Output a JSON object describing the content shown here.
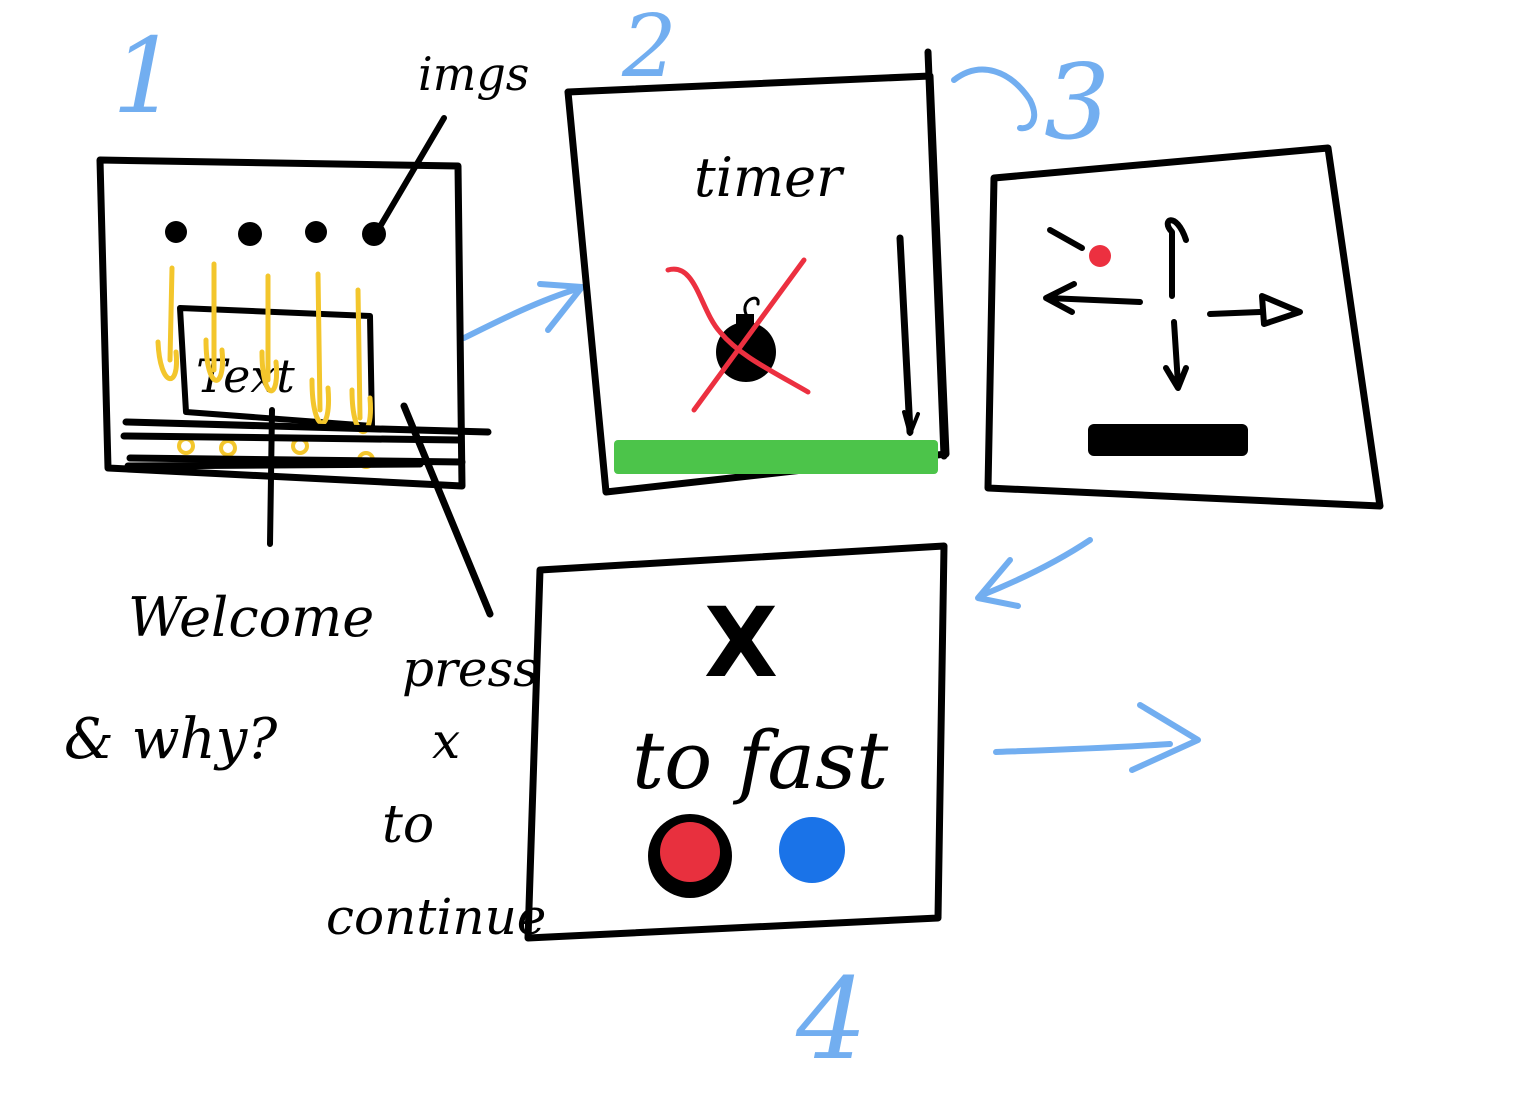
{
  "step_numbers": [
    "1",
    "2",
    "3",
    "4"
  ],
  "panel1": {
    "inner_text": "Text",
    "pointer_label": "imgs",
    "caption_line1": "Welcome",
    "caption_line2": "& why?",
    "press_line1": "press",
    "press_line2": "x",
    "press_line3": "to",
    "press_line4": "continue"
  },
  "panel2": {
    "title": "timer",
    "icon": "bomb-icon crossed out",
    "bar_color": "#4cc44a"
  },
  "panel3": {
    "icons": [
      "red-dot-icon",
      "arrow-left-icon",
      "arrow-up-icon",
      "arrow-down-icon",
      "arrow-right-icon"
    ],
    "dot_color": "#ec3040"
  },
  "panel4": {
    "key_label": "X",
    "caption": "to fast",
    "button_colors": [
      "#e8303e",
      "#1a73e8"
    ]
  },
  "colors": {
    "ink": "#000000",
    "annotation_blue": "#72aef0",
    "highlight_yellow": "#f3c62c",
    "cross_red": "#ec3040",
    "progress_green": "#4cc44a"
  }
}
